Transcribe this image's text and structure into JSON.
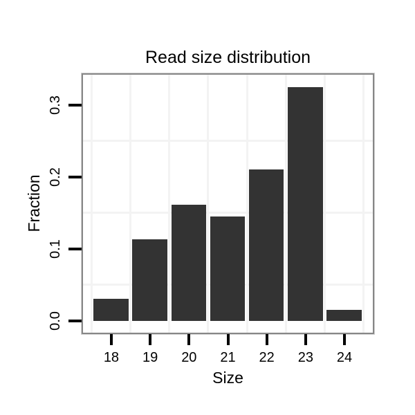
{
  "chart_data": {
    "type": "bar",
    "title": "Read size distribution",
    "xlabel": "Size",
    "ylabel": "Fraction",
    "categories": [
      18,
      19,
      20,
      21,
      22,
      23,
      24
    ],
    "values": [
      0.031,
      0.113,
      0.161,
      0.145,
      0.21,
      0.324,
      0.015
    ],
    "y_tick_labels": [
      "0.0",
      "0.1",
      "0.2",
      "0.3"
    ],
    "y_tick_values": [
      0.0,
      0.1,
      0.2,
      0.3
    ],
    "y_minor_gridlines": [
      0.05,
      0.15,
      0.25
    ],
    "x_minor_gridlines": [
      17.5,
      18.5,
      19.5,
      20.5,
      21.5,
      22.5,
      23.5,
      24.5
    ],
    "xlim": [
      17.28,
      24.72
    ],
    "ylim": [
      -0.0155,
      0.3415
    ],
    "bar_width_fraction": 0.9,
    "grid": "minor-only",
    "legend": "none",
    "colors": {
      "bar": "#333333",
      "gridline": "#f3f3f3",
      "panel_border": "#878787",
      "tick": "#000000",
      "text": "#000000",
      "background": "#ffffff"
    }
  }
}
